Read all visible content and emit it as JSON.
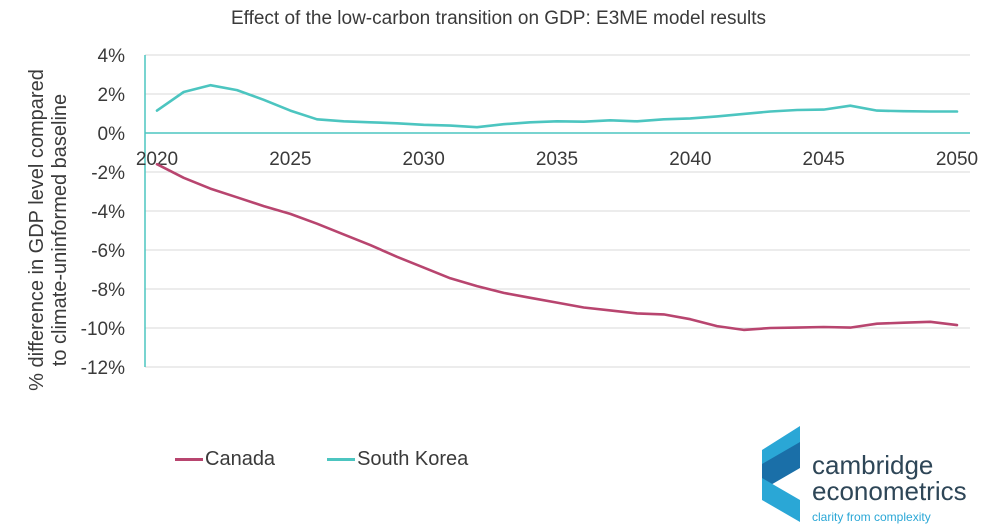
{
  "chart_data": {
    "type": "line",
    "title": "Effect of the low-carbon transition on GDP: E3ME model results",
    "ylabel": "% difference in GDP level compared to climate-uninformed baseline",
    "ylabel_lines": [
      "% difference in GDP level compared",
      "to climate-uninformed baseline"
    ],
    "xlabel": "",
    "ylim": [
      -12,
      4
    ],
    "yticks": [
      4,
      2,
      0,
      -2,
      -4,
      -6,
      -8,
      -10,
      -12
    ],
    "ytick_labels": [
      "4%",
      "2%",
      "0%",
      "-2%",
      "-4%",
      "-6%",
      "-8%",
      "-10%",
      "-12%"
    ],
    "xlim": [
      2020,
      2050
    ],
    "xticks": [
      2020,
      2025,
      2030,
      2035,
      2040,
      2045,
      2050
    ],
    "xtick_labels": [
      "2020",
      "2025",
      "2030",
      "2035",
      "2040",
      "2045",
      "2050"
    ],
    "grid": "horizontal",
    "legend_position": "bottom-left",
    "x": [
      2020,
      2021,
      2022,
      2023,
      2024,
      2025,
      2026,
      2027,
      2028,
      2029,
      2030,
      2031,
      2032,
      2033,
      2034,
      2035,
      2036,
      2037,
      2038,
      2039,
      2040,
      2041,
      2042,
      2043,
      2044,
      2045,
      2046,
      2047,
      2048,
      2049,
      2050
    ],
    "series": [
      {
        "name": "Canada",
        "color": "#b8456f",
        "values": [
          -1.6,
          -2.3,
          -2.85,
          -3.3,
          -3.75,
          -4.15,
          -4.65,
          -5.2,
          -5.75,
          -6.35,
          -6.9,
          -7.45,
          -7.85,
          -8.2,
          -8.45,
          -8.7,
          -8.95,
          -9.1,
          -9.25,
          -9.3,
          -9.55,
          -9.9,
          -10.1,
          -10.0,
          -9.98,
          -9.95,
          -9.98,
          -9.78,
          -9.73,
          -9.68,
          -9.85
        ]
      },
      {
        "name": "South Korea",
        "color": "#4cc5c0",
        "values": [
          1.15,
          2.1,
          2.45,
          2.2,
          1.7,
          1.15,
          0.7,
          0.6,
          0.55,
          0.5,
          0.42,
          0.38,
          0.3,
          0.45,
          0.55,
          0.6,
          0.58,
          0.65,
          0.6,
          0.7,
          0.75,
          0.85,
          0.98,
          1.1,
          1.18,
          1.2,
          1.4,
          1.15,
          1.12,
          1.1,
          1.1
        ]
      }
    ]
  },
  "logo": {
    "line1": "cambridge",
    "line2": "econometrics",
    "tagline": "clarity from complexity"
  }
}
